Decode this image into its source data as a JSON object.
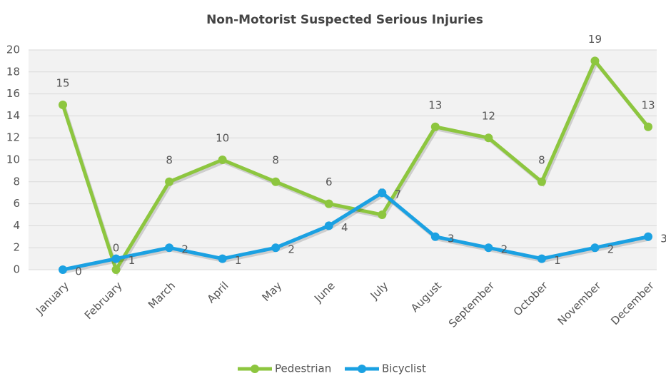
{
  "chart_data": {
    "type": "line",
    "title": "Non-Motorist Suspected Serious Injuries",
    "categories": [
      "January",
      "February",
      "March",
      "April",
      "May",
      "June",
      "July",
      "August",
      "September",
      "October",
      "November",
      "December"
    ],
    "series": [
      {
        "name": "Pedestrian",
        "color": "#8dc63f",
        "values": [
          15,
          0,
          8,
          10,
          8,
          6,
          5,
          13,
          12,
          8,
          19,
          13
        ]
      },
      {
        "name": "Bicyclist",
        "color": "#1ba1e2",
        "values": [
          0,
          1,
          2,
          1,
          2,
          4,
          7,
          3,
          2,
          1,
          2,
          3
        ]
      }
    ],
    "ylim": [
      0,
      20
    ],
    "yticks": [
      0,
      2,
      4,
      6,
      8,
      10,
      12,
      14,
      16,
      18,
      20
    ],
    "grid": true,
    "legend": "bottom"
  }
}
